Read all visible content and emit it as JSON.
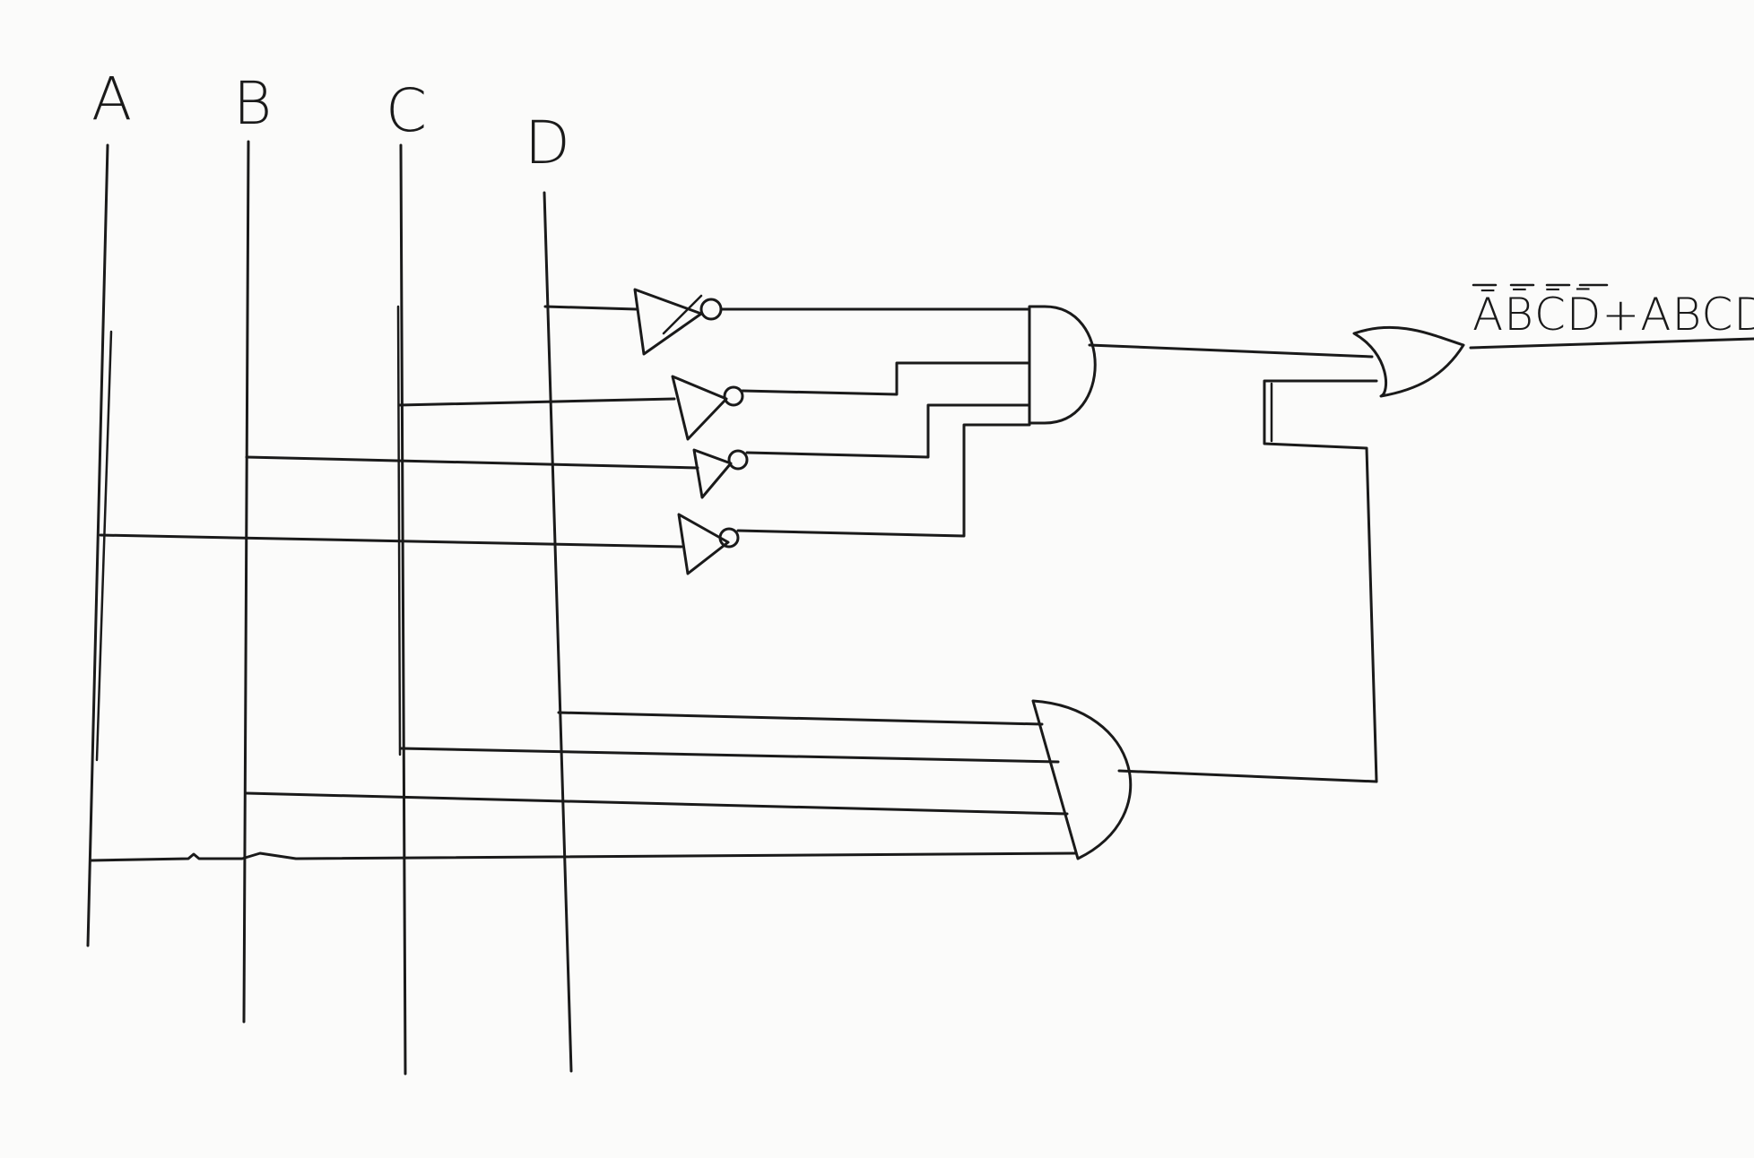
{
  "inputs": [
    {
      "id": "A",
      "label": "A"
    },
    {
      "id": "B",
      "label": "B"
    },
    {
      "id": "C",
      "label": "C"
    },
    {
      "id": "D",
      "label": "D"
    }
  ],
  "output": {
    "expression": "ĀB̄C̄D̄+ABCD"
  },
  "gates": {
    "not": [
      "NOT D",
      "NOT C",
      "NOT B",
      "NOT A"
    ],
    "and": [
      "AND 1",
      "AND 2"
    ],
    "or": [
      "OR"
    ]
  }
}
